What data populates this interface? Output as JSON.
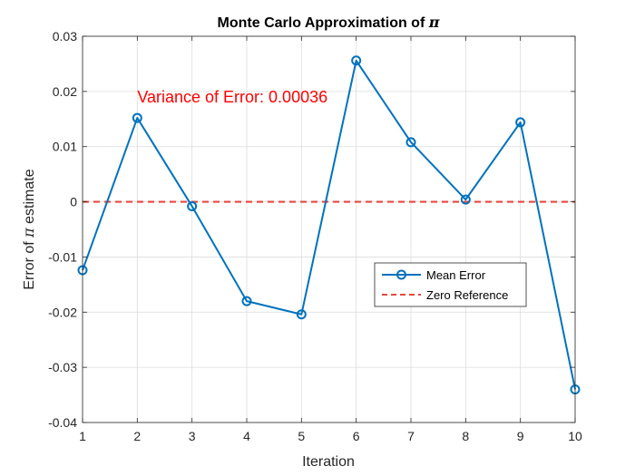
{
  "chart_data": {
    "type": "line",
    "title_prefix": "Monte Carlo Approximation of ",
    "title_symbol": "π",
    "xlabel": "Iteration",
    "ylabel_prefix": "Error of ",
    "ylabel_symbol": "π",
    "ylabel_suffix": " estimate",
    "xlim": [
      1,
      10
    ],
    "ylim": [
      -0.04,
      0.03
    ],
    "x_ticks": [
      1,
      2,
      3,
      4,
      5,
      6,
      7,
      8,
      9,
      10
    ],
    "y_ticks": [
      -0.04,
      -0.03,
      -0.02,
      -0.01,
      0,
      0.01,
      0.02,
      0.03
    ],
    "y_tick_labels": [
      "-0.04",
      "-0.03",
      "-0.02",
      "-0.01",
      "0",
      "0.01",
      "0.02",
      "0.03"
    ],
    "grid": true,
    "series": [
      {
        "name": "Mean Error",
        "color": "#0072BD",
        "style": "solid",
        "marker": "circle",
        "x": [
          1,
          2,
          3,
          4,
          5,
          6,
          7,
          8,
          9,
          10
        ],
        "values": [
          -0.0124,
          0.0152,
          -0.0008,
          -0.018,
          -0.0204,
          0.0256,
          0.0108,
          0.0004,
          0.0144,
          -0.034
        ]
      },
      {
        "name": "Zero Reference",
        "color": "#E8483F",
        "style": "dashed",
        "x": [
          1,
          10
        ],
        "values": [
          0,
          0
        ]
      }
    ],
    "annotation": {
      "text": "Variance of Error: 0.00036",
      "color": "#FF0000",
      "x": 2,
      "y": 0.0195
    },
    "legend": {
      "placement": "right-middle",
      "entries": [
        "Mean Error",
        "Zero Reference"
      ]
    }
  }
}
